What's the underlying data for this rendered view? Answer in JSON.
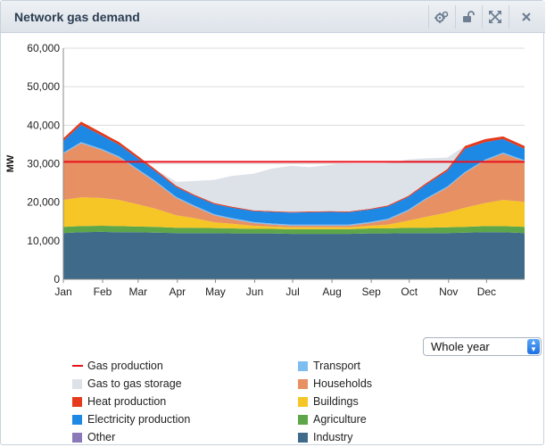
{
  "panel": {
    "title": "Network gas demand",
    "buttons": [
      {
        "name": "settings-button",
        "icon": "gears-icon"
      },
      {
        "name": "unlock-button",
        "icon": "unlock-icon"
      },
      {
        "name": "fullscreen-button",
        "icon": "expand-icon"
      },
      {
        "name": "close-button",
        "icon": "close-icon"
      }
    ]
  },
  "period_select": {
    "value": "Whole year",
    "icon": "up-down-arrows-icon"
  },
  "chart_data": {
    "type": "area",
    "title": "",
    "xlabel": "",
    "ylabel": "MW",
    "ylim": [
      0,
      60000
    ],
    "yticks": [
      "0",
      "10,000",
      "20,000",
      "30,000",
      "40,000",
      "50,000",
      "60,000"
    ],
    "xticks": [
      "Jan",
      "Feb",
      "Mar",
      "Apr",
      "May",
      "Jun",
      "Jul",
      "Aug",
      "Sep",
      "Oct",
      "Nov",
      "Dec"
    ],
    "grid": true,
    "legend_position": "bottom",
    "x": [
      1,
      15,
      31,
      45,
      59,
      73,
      90,
      104,
      120,
      134,
      151,
      165,
      181,
      195,
      212,
      226,
      243,
      257,
      273,
      287,
      304,
      318,
      334,
      348,
      365
    ],
    "series": [
      {
        "name": "Industry",
        "color": "#3f6a89",
        "values": [
          12000,
          12200,
          12300,
          12200,
          12200,
          12100,
          12000,
          12000,
          12000,
          11900,
          11900,
          11900,
          11800,
          11800,
          11800,
          11800,
          11900,
          11900,
          12000,
          12000,
          12000,
          12100,
          12200,
          12200,
          12000
        ]
      },
      {
        "name": "Agriculture",
        "color": "#5ea64a",
        "values": [
          1600,
          1600,
          1600,
          1600,
          1500,
          1500,
          1400,
          1400,
          1300,
          1300,
          1200,
          1200,
          1200,
          1200,
          1200,
          1200,
          1300,
          1300,
          1400,
          1400,
          1500,
          1500,
          1600,
          1600,
          1600
        ]
      },
      {
        "name": "Buildings",
        "color": "#f5c625",
        "values": [
          7000,
          7500,
          7200,
          6800,
          5800,
          4800,
          3200,
          2500,
          1500,
          1200,
          800,
          600,
          500,
          500,
          500,
          500,
          700,
          1000,
          1800,
          2800,
          3800,
          5000,
          6000,
          6800,
          6500
        ]
      },
      {
        "name": "Households",
        "color": "#e79064",
        "values": [
          12000,
          14000,
          12500,
          11000,
          9000,
          7000,
          4500,
          3000,
          1800,
          1200,
          700,
          500,
          400,
          400,
          400,
          400,
          700,
          1200,
          2500,
          4500,
          6500,
          9000,
          11000,
          12000,
          10500
        ]
      },
      {
        "name": "Transport",
        "color": "#7dbdf0",
        "values": [
          300,
          300,
          300,
          300,
          300,
          300,
          300,
          300,
          300,
          300,
          300,
          300,
          300,
          300,
          300,
          300,
          300,
          300,
          300,
          300,
          300,
          300,
          300,
          300,
          300
        ]
      },
      {
        "name": "Electricity production",
        "color": "#1e88e5",
        "values": [
          3000,
          4500,
          3500,
          3000,
          2800,
          2500,
          2500,
          2500,
          2600,
          2700,
          2800,
          3000,
          3100,
          3200,
          3300,
          3200,
          3200,
          3200,
          3300,
          3500,
          4000,
          6000,
          4500,
          3500,
          3000
        ]
      },
      {
        "name": "Heat production",
        "color": "#e53a1c",
        "values": [
          700,
          800,
          700,
          700,
          600,
          500,
          400,
          300,
          300,
          250,
          200,
          200,
          200,
          200,
          200,
          200,
          200,
          250,
          300,
          400,
          500,
          700,
          800,
          700,
          700
        ]
      },
      {
        "name": "Other",
        "color": "#8a78b8",
        "values": [
          0,
          0,
          0,
          0,
          0,
          0,
          0,
          0,
          0,
          0,
          0,
          0,
          0,
          0,
          0,
          0,
          0,
          0,
          0,
          0,
          0,
          0,
          0,
          0,
          0
        ]
      }
    ],
    "storage_series": {
      "name": "Gas to gas storage",
      "color": "#dde1e8",
      "values": [
        0,
        0,
        0,
        0,
        0,
        0,
        1000,
        3500,
        6000,
        8000,
        9500,
        11000,
        12000,
        11500,
        12000,
        12500,
        11800,
        11000,
        9500,
        6500,
        3000,
        0,
        0,
        0,
        0
      ]
    },
    "production_line": {
      "name": "Gas production",
      "color": "#e8111c",
      "value": 30500
    },
    "legend": [
      {
        "name": "Gas production",
        "kind": "line",
        "color": "#e8111c"
      },
      {
        "name": "Transport",
        "kind": "box",
        "color": "#7dbdf0"
      },
      {
        "name": "Gas to gas storage",
        "kind": "box",
        "color": "#dde1e8"
      },
      {
        "name": "Households",
        "kind": "box",
        "color": "#e79064"
      },
      {
        "name": "Heat production",
        "kind": "box",
        "color": "#e53a1c"
      },
      {
        "name": "Buildings",
        "kind": "box",
        "color": "#f5c625"
      },
      {
        "name": "Electricity production",
        "kind": "box",
        "color": "#1e88e5"
      },
      {
        "name": "Agriculture",
        "kind": "box",
        "color": "#5ea64a"
      },
      {
        "name": "Other",
        "kind": "box",
        "color": "#8a78b8"
      },
      {
        "name": "Industry",
        "kind": "box",
        "color": "#3f6a89"
      }
    ]
  }
}
